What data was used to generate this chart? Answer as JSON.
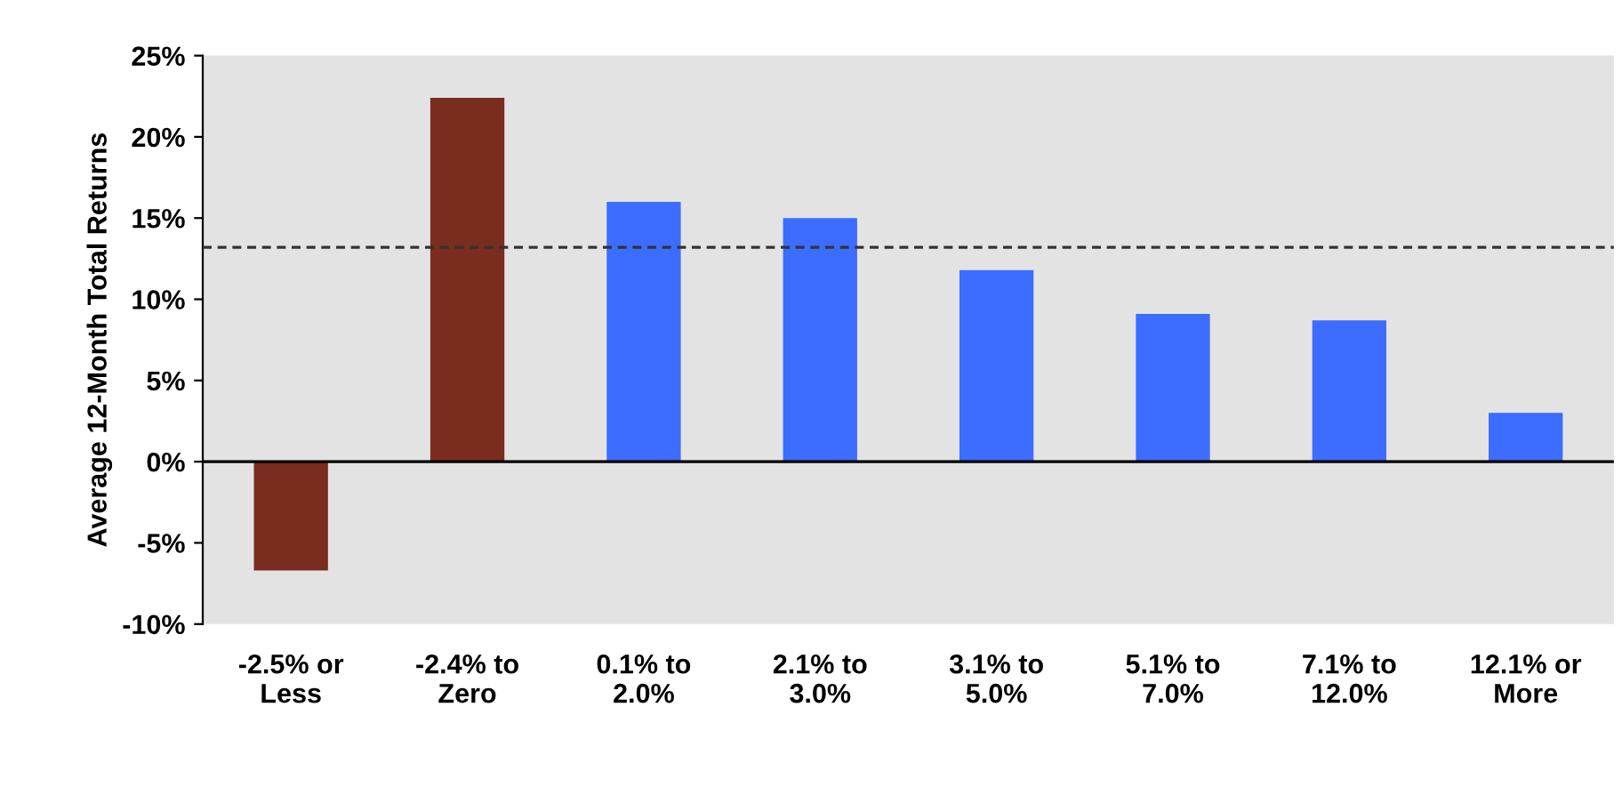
{
  "chart_data": {
    "type": "bar",
    "ylabel": "Average 12-Month Total Returns",
    "categories": [
      "-2.5% or\nLess",
      "-2.4% to\nZero",
      "0.1% to\n2.0%",
      "2.1% to\n3.0%",
      "3.1% to\n5.0%",
      "5.1% to\n7.0%",
      "7.1% to\n12.0%",
      "12.1% or\nMore"
    ],
    "values": [
      -6.7,
      22.4,
      16.0,
      15.0,
      11.8,
      9.1,
      8.7,
      3.0
    ],
    "colors": [
      "#7a2c1e",
      "#7a2c1e",
      "#3d6dff",
      "#3d6dff",
      "#3d6dff",
      "#3d6dff",
      "#3d6dff",
      "#3d6dff"
    ],
    "ylim": [
      -10,
      25
    ],
    "yticks": [
      {
        "value": -10,
        "label": "-10%"
      },
      {
        "value": -5,
        "label": "-5%"
      },
      {
        "value": 0,
        "label": "0%"
      },
      {
        "value": 5,
        "label": "5%"
      },
      {
        "value": 10,
        "label": "10%"
      },
      {
        "value": 15,
        "label": "15%"
      },
      {
        "value": 20,
        "label": "20%"
      },
      {
        "value": 25,
        "label": "25%"
      }
    ],
    "ref_lines": [
      {
        "axis": "y",
        "value": 13.2,
        "color": "#333333",
        "line_style": "dashed"
      },
      {
        "axis": "y",
        "value": 0,
        "color": "#000000",
        "line_style": "solid"
      }
    ],
    "grid": false,
    "legend": false
  }
}
